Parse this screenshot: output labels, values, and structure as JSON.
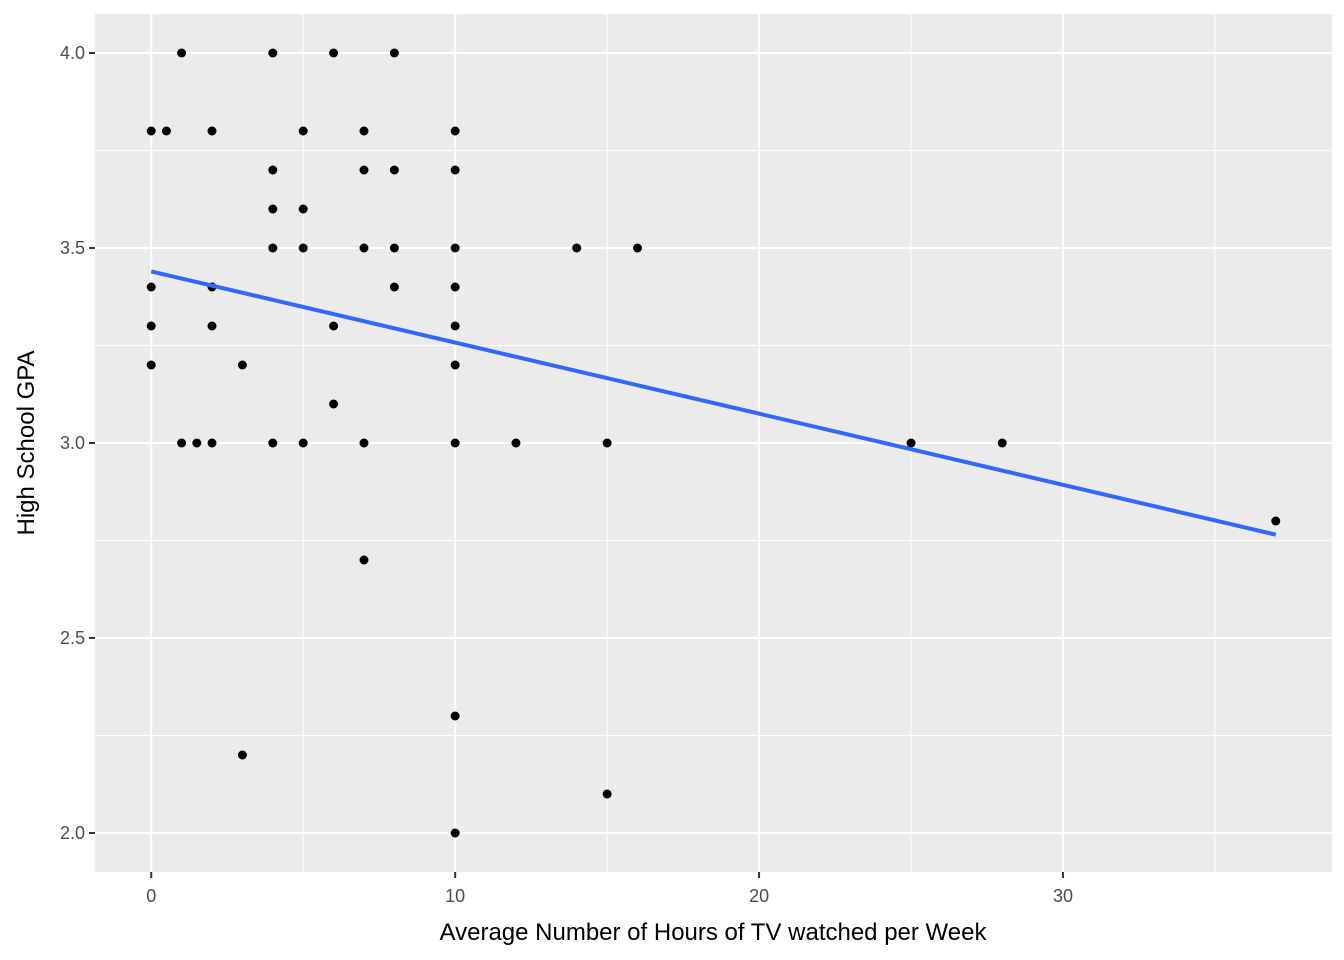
{
  "chart_data": {
    "type": "scatter",
    "title": "",
    "xlabel": "Average Number of Hours of TV watched per Week",
    "ylabel": "High School GPA",
    "xlim": [
      -1.85,
      38.85
    ],
    "ylim": [
      1.9,
      4.1
    ],
    "x_ticks": [
      0,
      10,
      20,
      30
    ],
    "x_tick_labels": [
      "0",
      "10",
      "20",
      "30"
    ],
    "y_ticks": [
      2.0,
      2.5,
      3.0,
      3.5,
      4.0
    ],
    "y_tick_labels": [
      "2.0",
      "2.5",
      "3.0",
      "3.5",
      "4.0"
    ],
    "grid": true,
    "legend": "none",
    "colors": {
      "panel_background": "#ebebeb",
      "grid": "#ffffff",
      "points": "#000000",
      "fit_line": "#3366ff"
    },
    "points": [
      {
        "x": 0,
        "y": 3.8
      },
      {
        "x": 0,
        "y": 3.4
      },
      {
        "x": 0,
        "y": 3.3
      },
      {
        "x": 0,
        "y": 3.2
      },
      {
        "x": 0.5,
        "y": 3.8
      },
      {
        "x": 1,
        "y": 4.0
      },
      {
        "x": 1,
        "y": 3.0
      },
      {
        "x": 1.5,
        "y": 3.0
      },
      {
        "x": 2,
        "y": 3.8
      },
      {
        "x": 2,
        "y": 3.4
      },
      {
        "x": 2,
        "y": 3.3
      },
      {
        "x": 2,
        "y": 3.0
      },
      {
        "x": 3,
        "y": 3.2
      },
      {
        "x": 3,
        "y": 2.2
      },
      {
        "x": 4,
        "y": 4.0
      },
      {
        "x": 4,
        "y": 3.7
      },
      {
        "x": 4,
        "y": 3.6
      },
      {
        "x": 4,
        "y": 3.5
      },
      {
        "x": 4,
        "y": 3.0
      },
      {
        "x": 5,
        "y": 3.8
      },
      {
        "x": 5,
        "y": 3.6
      },
      {
        "x": 5,
        "y": 3.5
      },
      {
        "x": 5,
        "y": 3.0
      },
      {
        "x": 6,
        "y": 4.0
      },
      {
        "x": 6,
        "y": 3.3
      },
      {
        "x": 6,
        "y": 3.1
      },
      {
        "x": 7,
        "y": 3.8
      },
      {
        "x": 7,
        "y": 3.7
      },
      {
        "x": 7,
        "y": 3.5
      },
      {
        "x": 7,
        "y": 3.0
      },
      {
        "x": 7,
        "y": 2.7
      },
      {
        "x": 8,
        "y": 4.0
      },
      {
        "x": 8,
        "y": 3.7
      },
      {
        "x": 8,
        "y": 3.5
      },
      {
        "x": 8,
        "y": 3.4
      },
      {
        "x": 10,
        "y": 3.8
      },
      {
        "x": 10,
        "y": 3.7
      },
      {
        "x": 10,
        "y": 3.5
      },
      {
        "x": 10,
        "y": 3.4
      },
      {
        "x": 10,
        "y": 3.3
      },
      {
        "x": 10,
        "y": 3.2
      },
      {
        "x": 10,
        "y": 3.0
      },
      {
        "x": 10,
        "y": 2.3
      },
      {
        "x": 10,
        "y": 2.0
      },
      {
        "x": 12,
        "y": 3.0
      },
      {
        "x": 14,
        "y": 3.5
      },
      {
        "x": 15,
        "y": 3.0
      },
      {
        "x": 15,
        "y": 2.1
      },
      {
        "x": 16,
        "y": 3.5
      },
      {
        "x": 25,
        "y": 3.0
      },
      {
        "x": 28,
        "y": 3.0
      },
      {
        "x": 37,
        "y": 2.8
      }
    ],
    "fit_line": {
      "x": [
        0,
        37
      ],
      "y": [
        3.44,
        2.765
      ]
    }
  }
}
